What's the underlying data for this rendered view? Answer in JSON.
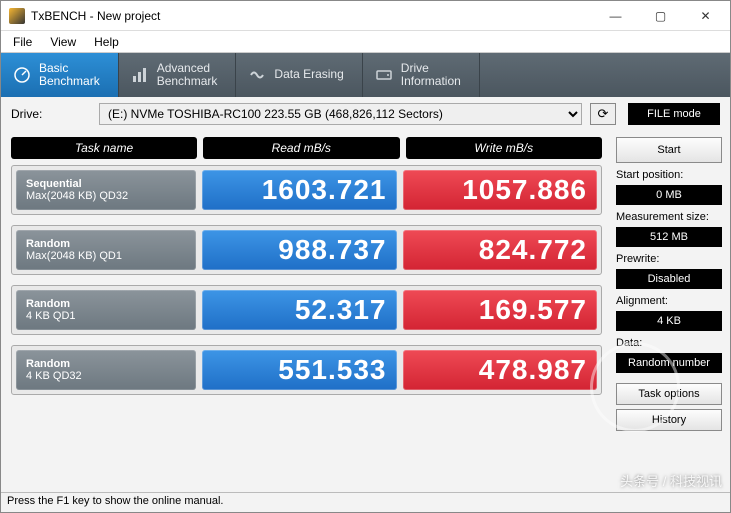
{
  "window": {
    "title": "TxBENCH - New project"
  },
  "menu": {
    "file": "File",
    "view": "View",
    "help": "Help"
  },
  "tabs": {
    "basic": {
      "l1": "Basic",
      "l2": "Benchmark"
    },
    "advanced": {
      "l1": "Advanced",
      "l2": "Benchmark"
    },
    "erasing": {
      "l1": "Data Erasing",
      "l2": ""
    },
    "drive": {
      "l1": "Drive",
      "l2": "Information"
    }
  },
  "drivebar": {
    "label": "Drive:",
    "selected": "(E:) NVMe TOSHIBA-RC100  223.55 GB (468,826,112 Sectors)",
    "filemode": "FILE mode"
  },
  "headers": {
    "task": "Task name",
    "read": "Read mB/s",
    "write": "Write mB/s"
  },
  "rows": [
    {
      "name1": "Sequential",
      "name2": "Max(2048 KB) QD32",
      "read": "1603.721",
      "write": "1057.886"
    },
    {
      "name1": "Random",
      "name2": "Max(2048 KB) QD1",
      "read": "988.737",
      "write": "824.772"
    },
    {
      "name1": "Random",
      "name2": "4 KB QD1",
      "read": "52.317",
      "write": "169.577"
    },
    {
      "name1": "Random",
      "name2": "4 KB QD32",
      "read": "551.533",
      "write": "478.987"
    }
  ],
  "side": {
    "start": "Start",
    "startpos_label": "Start position:",
    "startpos_val": "0 MB",
    "msize_label": "Measurement size:",
    "msize_val": "512 MB",
    "prewrite_label": "Prewrite:",
    "prewrite_val": "Disabled",
    "align_label": "Alignment:",
    "align_val": "4 KB",
    "data_label": "Data:",
    "data_val": "Random number",
    "taskopt": "Task options",
    "history": "History"
  },
  "statusbar": "Press the F1 key to show the online manual.",
  "watermark": "头条号 / 科技视讯",
  "colors": {
    "read_bg": "#2d8fd6",
    "write_bg": "#e13642",
    "task_bg": "#7a848c",
    "tabbar_bg": "#515c65"
  }
}
